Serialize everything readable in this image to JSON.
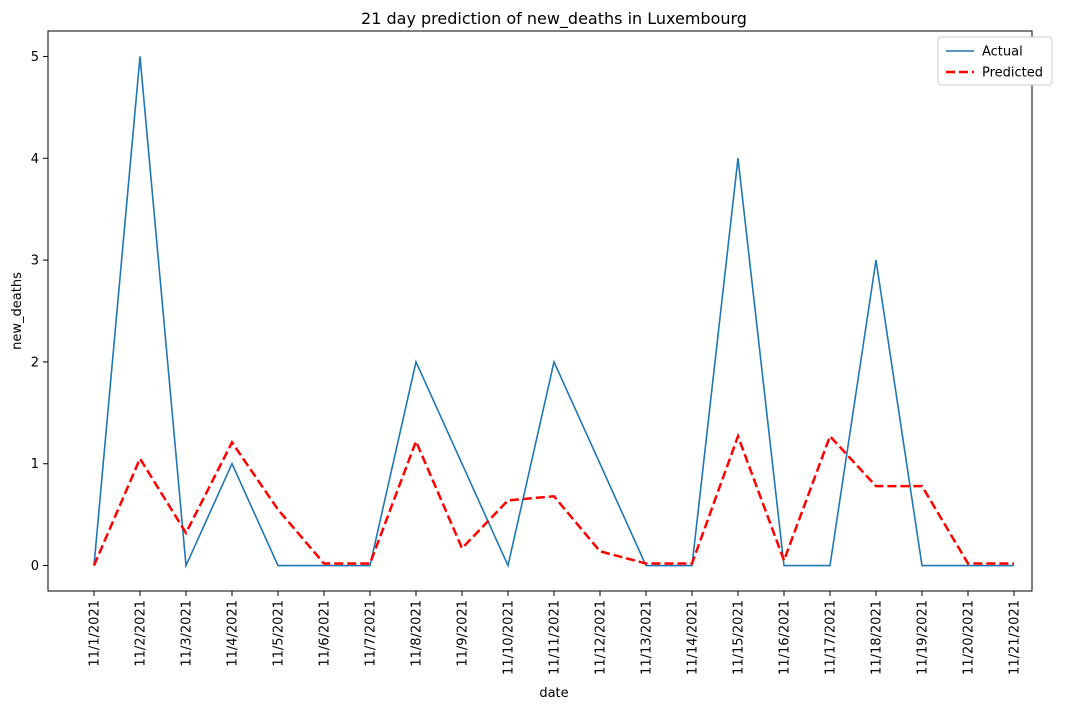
{
  "chart_data": {
    "type": "line",
    "title": "21 day prediction of new_deaths in Luxembourg",
    "xlabel": "date",
    "ylabel": "new_deaths",
    "categories": [
      "11/1/2021",
      "11/2/2021",
      "11/3/2021",
      "11/4/2021",
      "11/5/2021",
      "11/6/2021",
      "11/7/2021",
      "11/8/2021",
      "11/9/2021",
      "11/10/2021",
      "11/11/2021",
      "11/12/2021",
      "11/13/2021",
      "11/14/2021",
      "11/15/2021",
      "11/16/2021",
      "11/17/2021",
      "11/18/2021",
      "11/19/2021",
      "11/20/2021",
      "11/21/2021"
    ],
    "yticks": [
      0,
      1,
      2,
      3,
      4,
      5
    ],
    "ylim": [
      -0.25,
      5.25
    ],
    "grid": false,
    "legend_position": "top-right",
    "series": [
      {
        "name": "Actual",
        "color": "#1f77b4",
        "style": "solid",
        "values": [
          0,
          5,
          0,
          1,
          0,
          0,
          0,
          2,
          1,
          0,
          2,
          1,
          0,
          0,
          4,
          0,
          0,
          3,
          0,
          0,
          0
        ]
      },
      {
        "name": "Predicted",
        "color": "#ff0000",
        "style": "dashed",
        "values": [
          0.0,
          1.05,
          0.32,
          1.21,
          0.55,
          0.02,
          0.02,
          1.22,
          0.17,
          0.64,
          0.68,
          0.14,
          0.02,
          0.02,
          1.27,
          0.05,
          1.27,
          0.78,
          0.78,
          0.02,
          0.02
        ]
      }
    ]
  }
}
